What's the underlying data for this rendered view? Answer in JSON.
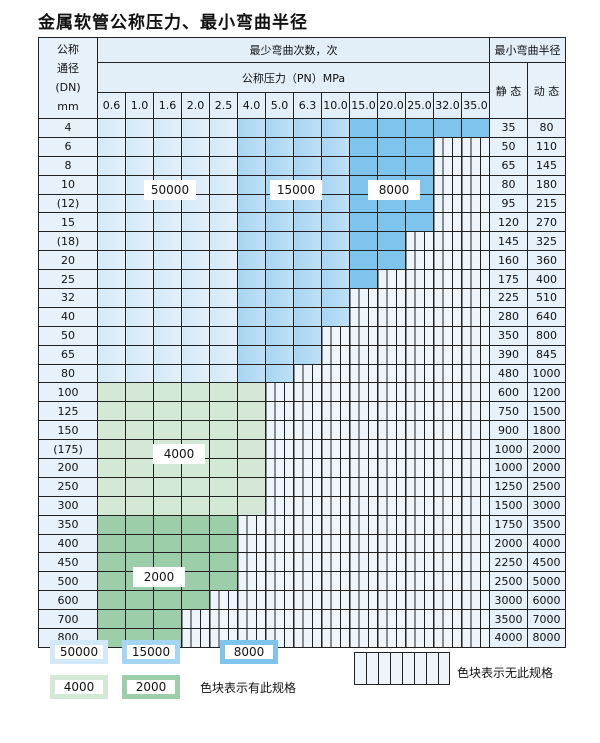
{
  "title": "金属软管公称压力、最小弯曲半径",
  "header": {
    "dn_label": [
      "公称",
      "通径",
      "(DN)",
      "mm"
    ],
    "cycles_label": "最少弯曲次数，次",
    "pressure_label": "公称压力（PN）MPa",
    "radius_label": "最小弯曲半径",
    "static_label": "静 态",
    "dynamic_label": "动 态",
    "pressures": [
      "0.6",
      "1.0",
      "1.6",
      "2.0",
      "2.5",
      "4.0",
      "5.0",
      "6.3",
      "10.0",
      "15.0",
      "20.0",
      "25.0",
      "32.0",
      "35.0"
    ]
  },
  "rows": [
    {
      "dn": "4",
      "static": "35",
      "dynamic": "80",
      "cycles": [
        [
          50000,
          5
        ],
        [
          15000,
          4
        ],
        [
          8000,
          5
        ]
      ]
    },
    {
      "dn": "6",
      "static": "50",
      "dynamic": "110",
      "cycles": [
        [
          50000,
          5
        ],
        [
          15000,
          4
        ],
        [
          8000,
          3
        ],
        [
          null,
          2
        ]
      ]
    },
    {
      "dn": "8",
      "static": "65",
      "dynamic": "145",
      "cycles": [
        [
          50000,
          5
        ],
        [
          15000,
          4
        ],
        [
          8000,
          3
        ],
        [
          null,
          2
        ]
      ]
    },
    {
      "dn": "10",
      "static": "80",
      "dynamic": "180",
      "cycles": [
        [
          50000,
          5
        ],
        [
          15000,
          4
        ],
        [
          8000,
          3
        ],
        [
          null,
          2
        ]
      ]
    },
    {
      "dn": "(12)",
      "static": "95",
      "dynamic": "215",
      "cycles": [
        [
          50000,
          5
        ],
        [
          15000,
          4
        ],
        [
          8000,
          3
        ],
        [
          null,
          2
        ]
      ]
    },
    {
      "dn": "15",
      "static": "120",
      "dynamic": "270",
      "cycles": [
        [
          50000,
          5
        ],
        [
          15000,
          4
        ],
        [
          8000,
          3
        ],
        [
          null,
          2
        ]
      ]
    },
    {
      "dn": "(18)",
      "static": "145",
      "dynamic": "325",
      "cycles": [
        [
          50000,
          5
        ],
        [
          15000,
          4
        ],
        [
          8000,
          2
        ],
        [
          null,
          3
        ]
      ]
    },
    {
      "dn": "20",
      "static": "160",
      "dynamic": "360",
      "cycles": [
        [
          50000,
          5
        ],
        [
          15000,
          4
        ],
        [
          8000,
          2
        ],
        [
          null,
          3
        ]
      ]
    },
    {
      "dn": "25",
      "static": "175",
      "dynamic": "400",
      "cycles": [
        [
          50000,
          5
        ],
        [
          15000,
          4
        ],
        [
          8000,
          1
        ],
        [
          null,
          4
        ]
      ]
    },
    {
      "dn": "32",
      "static": "225",
      "dynamic": "510",
      "cycles": [
        [
          50000,
          5
        ],
        [
          15000,
          4
        ],
        [
          null,
          5
        ]
      ]
    },
    {
      "dn": "40",
      "static": "280",
      "dynamic": "640",
      "cycles": [
        [
          50000,
          5
        ],
        [
          15000,
          4
        ],
        [
          null,
          5
        ]
      ]
    },
    {
      "dn": "50",
      "static": "350",
      "dynamic": "800",
      "cycles": [
        [
          50000,
          5
        ],
        [
          15000,
          3
        ],
        [
          null,
          6
        ]
      ]
    },
    {
      "dn": "65",
      "static": "390",
      "dynamic": "845",
      "cycles": [
        [
          50000,
          5
        ],
        [
          15000,
          3
        ],
        [
          null,
          6
        ]
      ]
    },
    {
      "dn": "80",
      "static": "480",
      "dynamic": "1000",
      "cycles": [
        [
          50000,
          5
        ],
        [
          15000,
          2
        ],
        [
          null,
          7
        ]
      ]
    },
    {
      "dn": "100",
      "static": "600",
      "dynamic": "1200",
      "cycles": [
        [
          4000,
          6
        ],
        [
          null,
          8
        ]
      ]
    },
    {
      "dn": "125",
      "static": "750",
      "dynamic": "1500",
      "cycles": [
        [
          4000,
          6
        ],
        [
          null,
          8
        ]
      ]
    },
    {
      "dn": "150",
      "static": "900",
      "dynamic": "1800",
      "cycles": [
        [
          4000,
          6
        ],
        [
          null,
          8
        ]
      ]
    },
    {
      "dn": "(175)",
      "static": "1000",
      "dynamic": "2000",
      "cycles": [
        [
          4000,
          6
        ],
        [
          null,
          8
        ]
      ]
    },
    {
      "dn": "200",
      "static": "1000",
      "dynamic": "2000",
      "cycles": [
        [
          4000,
          6
        ],
        [
          null,
          8
        ]
      ]
    },
    {
      "dn": "250",
      "static": "1250",
      "dynamic": "2500",
      "cycles": [
        [
          4000,
          6
        ],
        [
          null,
          8
        ]
      ]
    },
    {
      "dn": "300",
      "static": "1500",
      "dynamic": "3000",
      "cycles": [
        [
          4000,
          6
        ],
        [
          null,
          8
        ]
      ]
    },
    {
      "dn": "350",
      "static": "1750",
      "dynamic": "3500",
      "cycles": [
        [
          2000,
          5
        ],
        [
          null,
          9
        ]
      ]
    },
    {
      "dn": "400",
      "static": "2000",
      "dynamic": "4000",
      "cycles": [
        [
          2000,
          5
        ],
        [
          null,
          9
        ]
      ]
    },
    {
      "dn": "450",
      "static": "2250",
      "dynamic": "4500",
      "cycles": [
        [
          2000,
          5
        ],
        [
          null,
          9
        ]
      ]
    },
    {
      "dn": "500",
      "static": "2500",
      "dynamic": "5000",
      "cycles": [
        [
          2000,
          5
        ],
        [
          null,
          9
        ]
      ]
    },
    {
      "dn": "600",
      "static": "3000",
      "dynamic": "6000",
      "cycles": [
        [
          2000,
          4
        ],
        [
          null,
          10
        ]
      ]
    },
    {
      "dn": "700",
      "static": "3500",
      "dynamic": "7000",
      "cycles": [
        [
          2000,
          3
        ],
        [
          null,
          11
        ]
      ]
    },
    {
      "dn": "800",
      "static": "4000",
      "dynamic": "8000",
      "cycles": [
        [
          2000,
          3
        ],
        [
          null,
          11
        ]
      ]
    }
  ],
  "region_labels": {
    "l50000": "50000",
    "l15000": "15000",
    "l8000": "8000",
    "l4000": "4000",
    "l2000": "2000"
  },
  "legend": {
    "items": [
      "50000",
      "15000",
      "8000",
      "4000",
      "2000"
    ],
    "colors": {
      "50000": "#d4e9f8",
      "15000": "#a6d5f3",
      "8000": "#7ec4ec",
      "4000": "#d3e8d5",
      "2000": "#9ccfa9"
    },
    "has_spec_text": "色块表示有此规格",
    "no_spec_text": "色块表示无此规格"
  }
}
